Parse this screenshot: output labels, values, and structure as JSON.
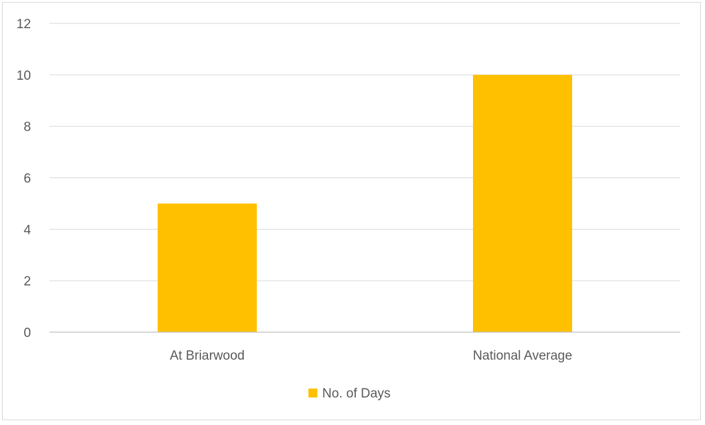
{
  "chart_data": {
    "type": "bar",
    "categories": [
      "At Briarwood",
      "National Average"
    ],
    "series": [
      {
        "name": "No. of Days",
        "values": [
          5,
          10
        ],
        "color": "#FFC000"
      }
    ],
    "xlabel": "",
    "ylabel": "",
    "ylim": [
      0,
      12
    ],
    "yticks": [
      0,
      2,
      4,
      6,
      8,
      10,
      12
    ],
    "grid": true,
    "legend": "bottom"
  }
}
